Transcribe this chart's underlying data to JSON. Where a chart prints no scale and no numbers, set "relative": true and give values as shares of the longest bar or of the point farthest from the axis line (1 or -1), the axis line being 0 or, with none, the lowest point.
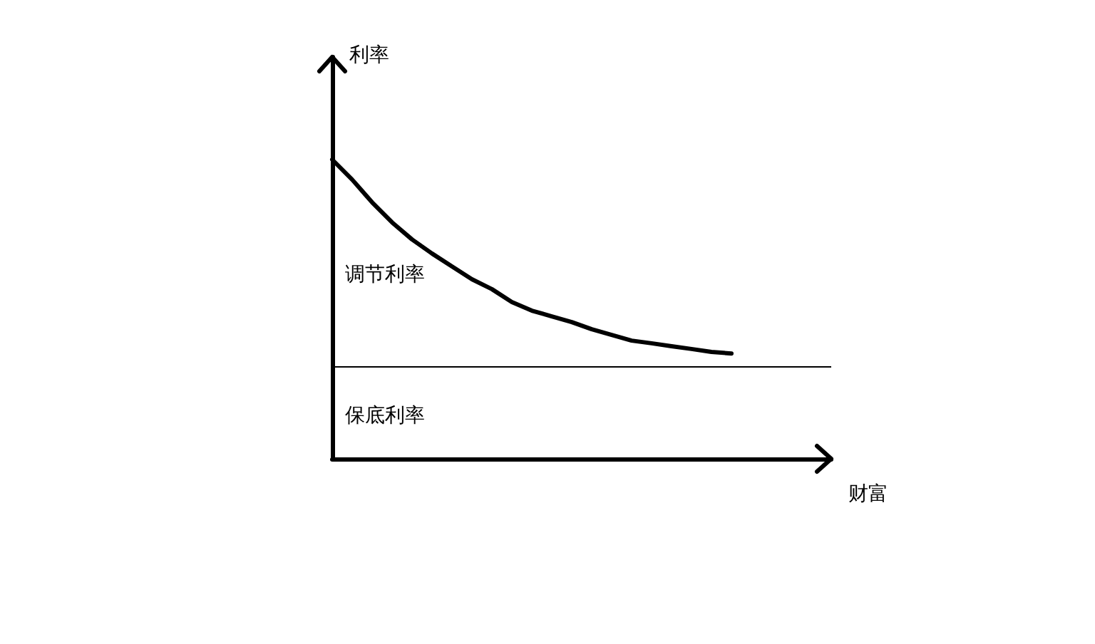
{
  "chart_data": {
    "type": "line",
    "relative": true,
    "xlabel": "财富",
    "ylabel": "利率",
    "categories": [
      null,
      null,
      null,
      null,
      null,
      null,
      null,
      null,
      null,
      null,
      null,
      null,
      null,
      null,
      null,
      null,
      null,
      null,
      null,
      null,
      null,
      null,
      null,
      null,
      null,
      null
    ],
    "series": [
      {
        "color": "#000000",
        "values": [
          1.0,
          0.933,
          0.857,
          0.79,
          0.733,
          0.686,
          0.643,
          0.6,
          0.567,
          0.524,
          0.495,
          0.476,
          0.457,
          0.433,
          0.414,
          0.395,
          0.386,
          0.376,
          0.367,
          0.357,
          0.352,
          null,
          null,
          null,
          null,
          null
        ]
      }
    ],
    "ref_lines": [
      {
        "axis": "y",
        "value": 0.314,
        "color": "#000000",
        "line_style": "solid"
      }
    ],
    "annotations": [
      "调节利率",
      "保底利率"
    ],
    "marker": "none",
    "grid": false
  }
}
